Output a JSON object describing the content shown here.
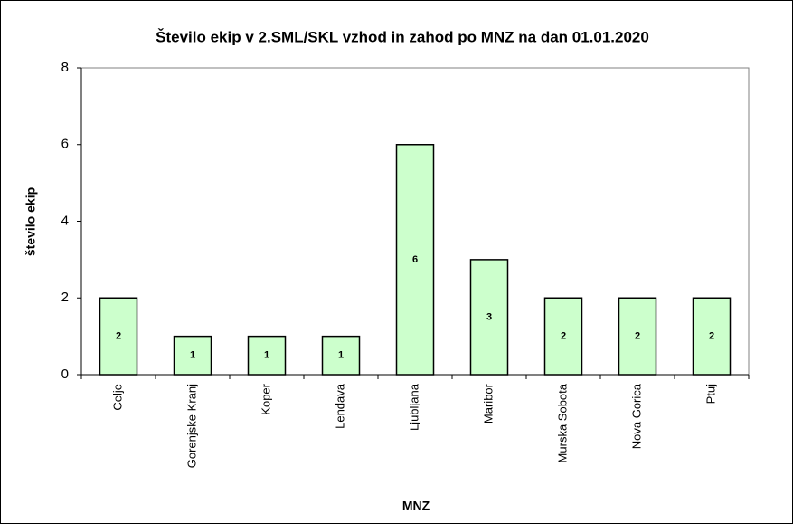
{
  "chart_data": {
    "type": "bar",
    "title": "Število ekip v 2.SML/SKL vzhod in zahod po MNZ na dan 01.01.2020",
    "x_label": "MNZ",
    "y_label": "število ekip",
    "categories": [
      "Celje",
      "Gorenjske Kranj",
      "Koper",
      "Lendava",
      "Ljubljana",
      "Maribor",
      "Murska Sobota",
      "Nova Gorica",
      "Ptuj"
    ],
    "values": [
      2,
      1,
      1,
      1,
      6,
      3,
      2,
      2,
      2
    ],
    "color": "#ccffcc",
    "ylim": [
      0,
      8
    ],
    "yticks": [
      0,
      2,
      4,
      6,
      8
    ],
    "grid": false
  }
}
